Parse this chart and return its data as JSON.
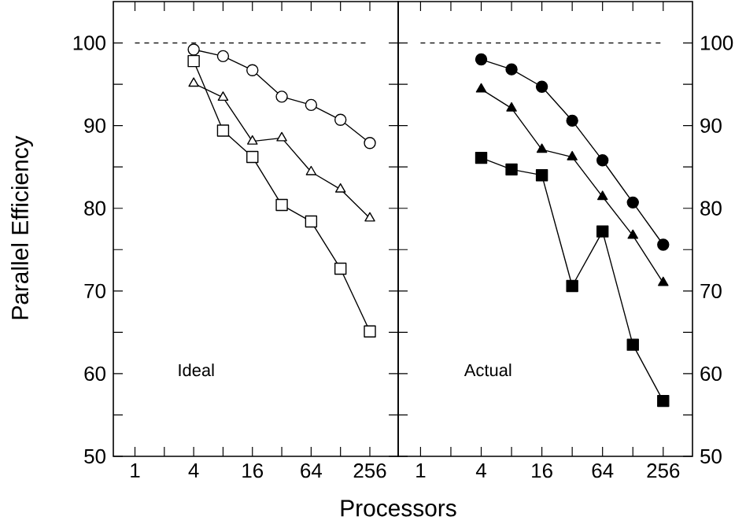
{
  "chart_data": [
    {
      "type": "line",
      "xlabel": "Processors",
      "ylabel": "Parallel Efficiency",
      "annotations": [
        "Ideal"
      ],
      "log": "x",
      "grid": false,
      "line_style": "solid",
      "x": [
        4,
        8,
        16,
        32,
        64,
        128,
        256
      ],
      "xlim": [
        0.6,
        500
      ],
      "ylim": [
        50,
        105
      ],
      "xticks": [
        1,
        {
          "value": 2,
          "label": null
        },
        4,
        {
          "value": 8,
          "label": null
        },
        16,
        {
          "value": 32,
          "label": null
        },
        64,
        {
          "value": 128,
          "label": null
        },
        256
      ],
      "yticks": [
        50,
        {
          "value": 55,
          "label": null
        },
        60,
        {
          "value": 65,
          "label": null
        },
        70,
        {
          "value": 75,
          "label": null
        },
        80,
        {
          "value": 85,
          "label": null
        },
        90,
        {
          "value": 95,
          "label": null
        },
        100
      ],
      "ref_lines": [
        {
          "axis": "y",
          "value": 100,
          "line_style": "dashed",
          "color": "#000000"
        }
      ],
      "series": [
        {
          "color": "#000000",
          "marker": "circle",
          "values": [
            99.2,
            98.4,
            96.7,
            93.5,
            92.5,
            90.7,
            87.9
          ]
        },
        {
          "color": "#000000",
          "marker": "triangle",
          "values": [
            95.1,
            93.4,
            88.1,
            88.5,
            84.4,
            82.3,
            78.8
          ]
        },
        {
          "color": "#000000",
          "marker": "square",
          "values": [
            97.8,
            89.4,
            86.2,
            80.4,
            78.4,
            72.7,
            65.1
          ]
        }
      ]
    },
    {
      "type": "line",
      "annotations": [
        "Actual"
      ],
      "log": "x",
      "grid": false,
      "line_style": "solid",
      "x": [
        4,
        8,
        16,
        32,
        64,
        128,
        256
      ],
      "xlim": [
        0.6,
        500
      ],
      "ylim": [
        50,
        105
      ],
      "xticks": [
        1,
        {
          "value": 2,
          "label": null
        },
        4,
        {
          "value": 8,
          "label": null
        },
        16,
        {
          "value": 32,
          "label": null
        },
        64,
        {
          "value": 128,
          "label": null
        },
        256
      ],
      "yticks": [
        50,
        {
          "value": 55,
          "label": null
        },
        60,
        {
          "value": 65,
          "label": null
        },
        70,
        {
          "value": 75,
          "label": null
        },
        80,
        {
          "value": 85,
          "label": null
        },
        90,
        {
          "value": 95,
          "label": null
        },
        100
      ],
      "ref_lines": [
        {
          "axis": "y",
          "value": 100,
          "line_style": "dashed",
          "color": "#000000"
        }
      ],
      "series": [
        {
          "color": "#000000",
          "marker": "circle",
          "values": [
            98.0,
            96.8,
            94.7,
            90.6,
            85.8,
            80.7,
            75.6
          ]
        },
        {
          "color": "#000000",
          "marker": "triangle",
          "values": [
            94.4,
            92.1,
            87.1,
            86.2,
            81.4,
            76.7,
            71.0
          ]
        },
        {
          "color": "#000000",
          "marker": "square",
          "values": [
            86.1,
            84.7,
            84.0,
            70.6,
            77.2,
            63.5,
            56.7
          ]
        }
      ]
    }
  ]
}
